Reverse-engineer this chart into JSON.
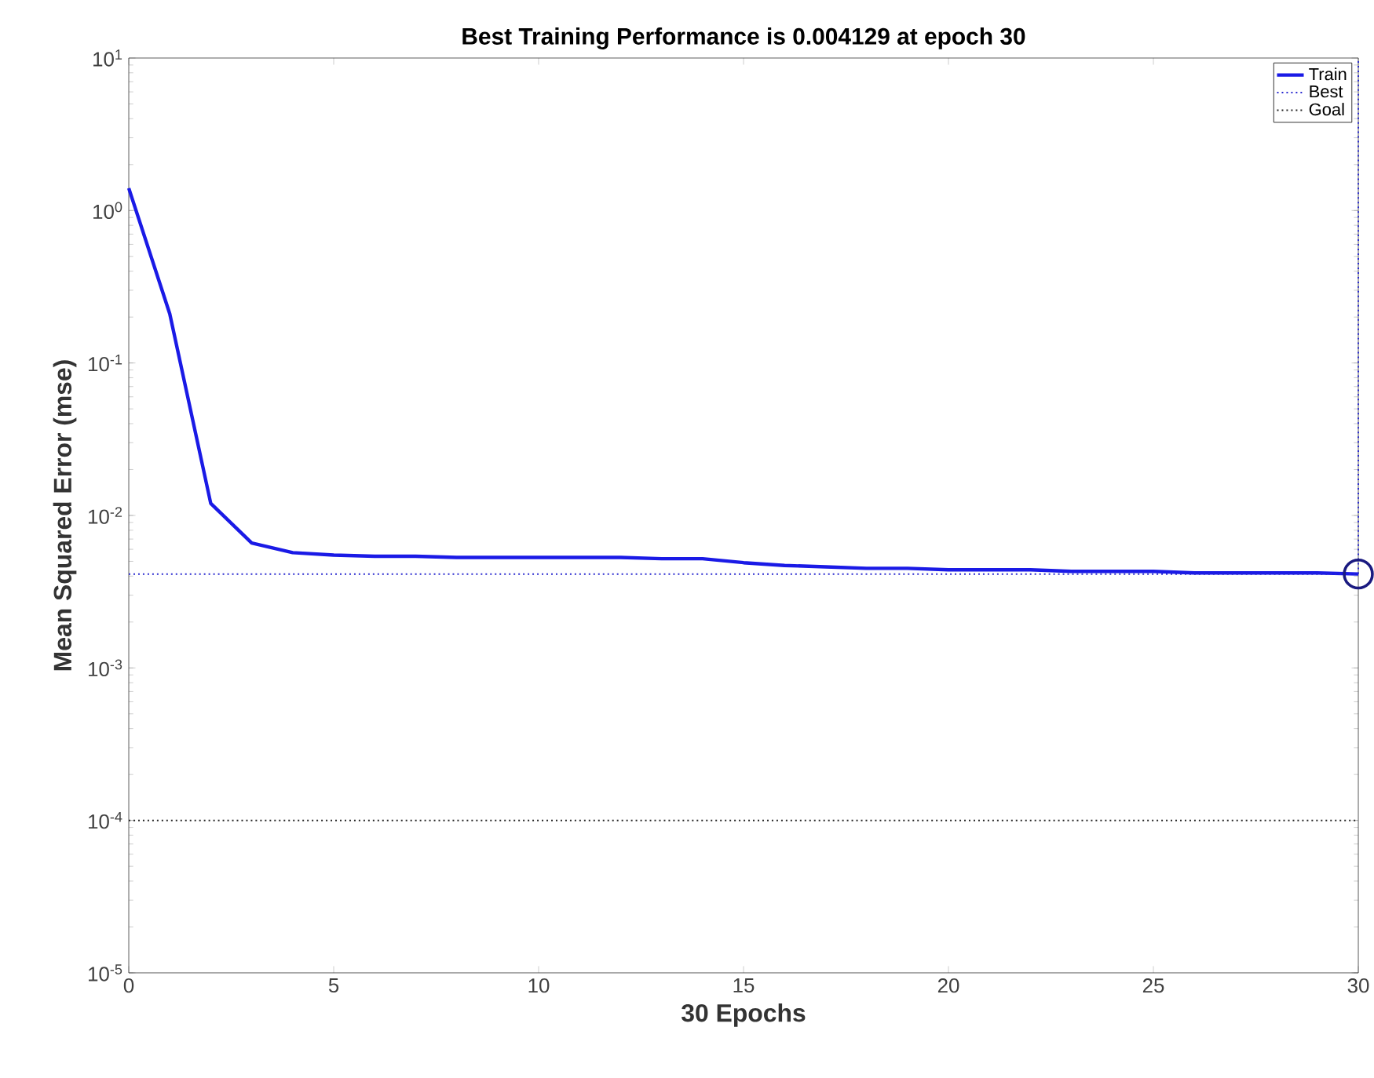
{
  "chart_data": {
    "type": "line",
    "title": "Best Training Performance is 0.004129 at epoch 30",
    "xlabel": "30 Epochs",
    "ylabel": "Mean Squared Error  (mse)",
    "log": "y",
    "grid": false,
    "legend": "top right",
    "xlim": [
      0,
      30
    ],
    "xticks": [
      0,
      5,
      10,
      15,
      20,
      25,
      30
    ],
    "ylim": [
      1e-05,
      10
    ],
    "yticks": [
      {
        "value": 1e-05,
        "label": "10$^{-5}$"
      },
      {
        "value": 0.0001,
        "label": "10$^{-4}$"
      },
      {
        "value": 0.001,
        "label": "10$^{-3}$"
      },
      {
        "value": 0.01,
        "label": "10$^{-2}$"
      },
      {
        "value": 0.1,
        "label": "10$^{-1}$"
      },
      {
        "value": 1,
        "label": "10$^{0}$"
      },
      {
        "value": 10,
        "label": "10$^{1}$"
      }
    ],
    "series": [
      {
        "name": "Train",
        "color": "#1a1ae6",
        "line_style": "solid",
        "marker": "none",
        "x": [
          0,
          1,
          2,
          3,
          4,
          5,
          6,
          7,
          8,
          9,
          10,
          11,
          12,
          13,
          14,
          15,
          16,
          17,
          18,
          19,
          20,
          21,
          22,
          23,
          24,
          25,
          26,
          27,
          28,
          29,
          30
        ],
        "values": [
          1.4,
          0.21,
          0.012,
          0.0066,
          0.0057,
          0.0055,
          0.0054,
          0.0054,
          0.0053,
          0.0053,
          0.0053,
          0.0053,
          0.0053,
          0.0052,
          0.0052,
          0.0049,
          0.0047,
          0.0046,
          0.0045,
          0.0045,
          0.0044,
          0.0044,
          0.0044,
          0.0043,
          0.0043,
          0.0043,
          0.0042,
          0.0042,
          0.0042,
          0.0042,
          0.004129
        ]
      },
      {
        "name": "Best",
        "color": "#2a2ad0",
        "line_style": "dotted",
        "marker": "none",
        "x": [
          0,
          30,
          30
        ],
        "values": [
          0.004129,
          0.004129,
          10
        ]
      },
      {
        "name": "Goal",
        "color": "#222222",
        "line_style": "dotted",
        "marker": "none",
        "x": [
          0,
          30
        ],
        "values": [
          0.0001,
          0.0001
        ]
      },
      {
        "type": "scatter",
        "color": "#1a1a80",
        "marker": "circle",
        "x": [
          30
        ],
        "values": [
          0.004129
        ]
      }
    ]
  }
}
